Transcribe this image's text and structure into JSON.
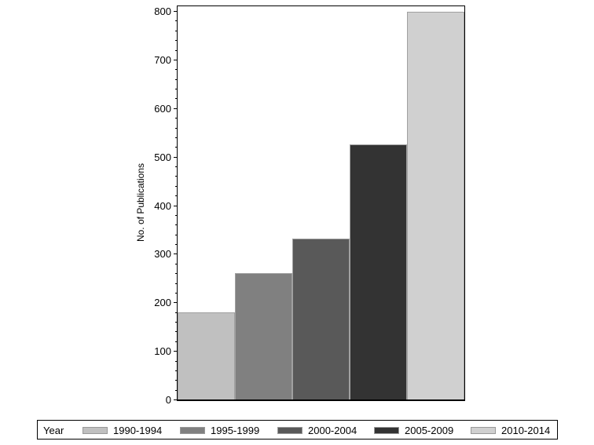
{
  "chart_data": {
    "type": "bar",
    "title": "",
    "xlabel": "",
    "ylabel": "No. of Publications",
    "ylim": [
      0,
      800
    ],
    "yticks": [
      0,
      100,
      200,
      300,
      400,
      500,
      600,
      700,
      800
    ],
    "minor_tick_step": 20,
    "grid": false,
    "legend_position": "bottom",
    "legend_title": "Year",
    "categories": [
      "1990-1994",
      "1995-1999",
      "2000-2004",
      "2005-2009",
      "2010-2014"
    ],
    "values": [
      180,
      260,
      332,
      526,
      798
    ],
    "colors": [
      "#c0c0c0",
      "#808080",
      "#595959",
      "#333333",
      "#d0d0d0"
    ]
  }
}
